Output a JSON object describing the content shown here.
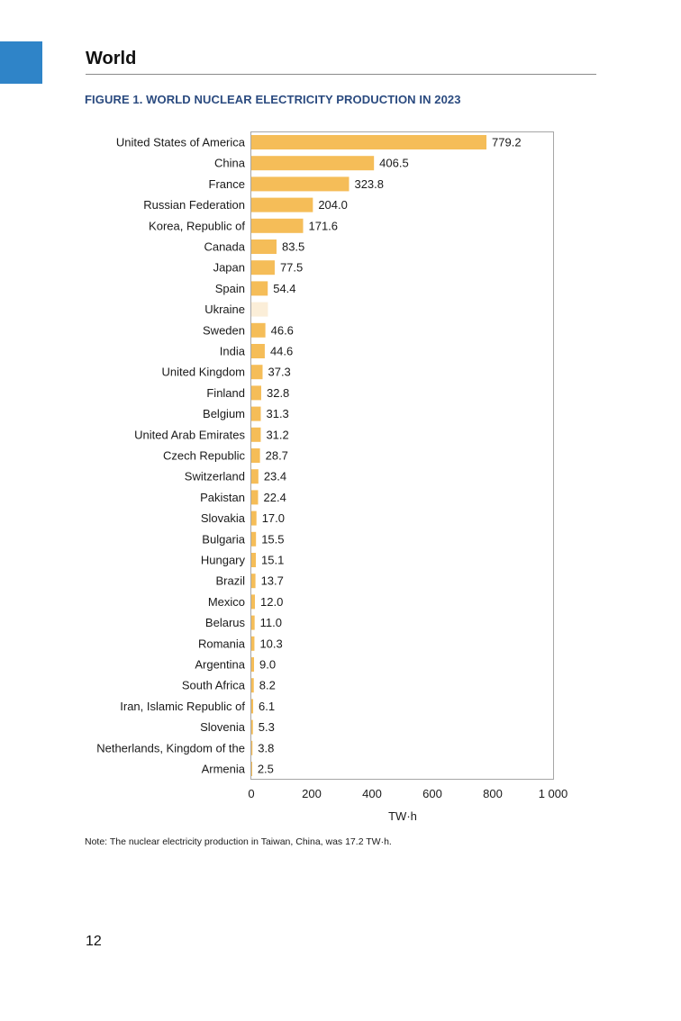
{
  "page": {
    "section_title": "World",
    "figure_title": "FIGURE 1. WORLD NUCLEAR ELECTRICITY PRODUCTION IN 2023",
    "note": "Note: The nuclear electricity production in Taiwan, China, was 17.2 TW·h.",
    "page_number": "12",
    "accent_color": "#2f84c8",
    "heading_color": "#2a4a7f"
  },
  "chart_data": {
    "type": "bar",
    "orientation": "horizontal",
    "title": "FIGURE 1. WORLD NUCLEAR ELECTRICITY PRODUCTION IN 2023",
    "xlabel": "TW·h",
    "ylabel": "",
    "xlim": [
      0,
      1000
    ],
    "x_ticks": [
      0,
      200,
      400,
      600,
      800,
      1000
    ],
    "x_tick_labels": [
      "0",
      "200",
      "400",
      "600",
      "800",
      "1 000"
    ],
    "grid": false,
    "bar_color": "#f5bd58",
    "highlight_color": "#fbeed8",
    "categories": [
      "United States of America",
      "China",
      "France",
      "Russian Federation",
      "Korea, Republic of",
      "Canada",
      "Japan",
      "Spain",
      "Ukraine",
      "Sweden",
      "India",
      "United Kingdom",
      "Finland",
      "Belgium",
      "United Arab Emirates",
      "Czech Republic",
      "Switzerland",
      "Pakistan",
      "Slovakia",
      "Bulgaria",
      "Hungary",
      "Brazil",
      "Mexico",
      "Belarus",
      "Romania",
      "Argentina",
      "South Africa",
      "Iran, Islamic Republic of",
      "Slovenia",
      "Netherlands, Kingdom of the",
      "Armenia"
    ],
    "values": [
      779.2,
      406.5,
      323.8,
      204.0,
      171.6,
      83.5,
      77.5,
      54.4,
      55,
      46.6,
      44.6,
      37.3,
      32.8,
      31.3,
      31.2,
      28.7,
      23.4,
      22.4,
      17.0,
      15.5,
      15.1,
      13.7,
      12.0,
      11.0,
      10.3,
      9.0,
      8.2,
      6.1,
      5.3,
      3.8,
      2.5
    ],
    "value_labels": [
      "779.2",
      "406.5",
      "323.8",
      "204.0",
      "171.6",
      "83.5",
      "77.5",
      "54.4",
      "",
      "46.6",
      "44.6",
      "37.3",
      "32.8",
      "31.3",
      "31.2",
      "28.7",
      "23.4",
      "22.4",
      "17.0",
      "15.5",
      "15.1",
      "13.7",
      "12.0",
      "11.0",
      "10.3",
      "9.0",
      "8.2",
      "6.1",
      "5.3",
      "3.8",
      "2.5"
    ],
    "highlighted": [
      "Ukraine"
    ]
  }
}
